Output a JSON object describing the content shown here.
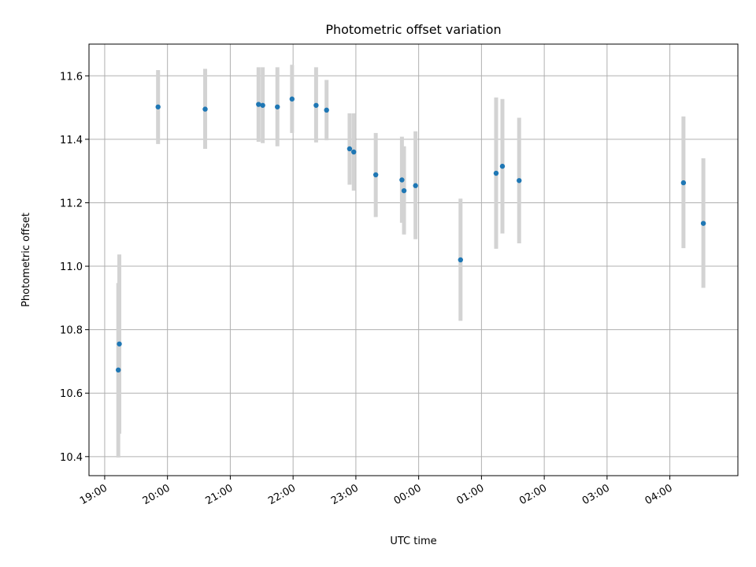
{
  "chart_data": {
    "type": "scatter",
    "title": "Photometric offset variation",
    "xlabel": "UTC time",
    "ylabel": "Photometric offset",
    "grid": true,
    "legend": "none",
    "colors": {
      "point": "#1f77b4",
      "errorbar": "#d3d3d3",
      "grid": "#b0b0b0"
    },
    "x_axis": {
      "type": "time",
      "range": [
        "18:45",
        "05:05"
      ],
      "tick_times": [
        "19:00",
        "20:00",
        "21:00",
        "22:00",
        "23:00",
        "00:00",
        "01:00",
        "02:00",
        "03:00",
        "04:00"
      ],
      "tick_labels": [
        "19:00",
        "20:00",
        "21:00",
        "22:00",
        "23:00",
        "00:00",
        "01:00",
        "02:00",
        "03:00",
        "04:00"
      ]
    },
    "y_axis": {
      "range": [
        10.34,
        11.7
      ],
      "ticks": [
        10.4,
        10.6,
        10.8,
        11.0,
        11.2,
        11.4,
        11.6
      ],
      "tick_labels": [
        "10.4",
        "10.6",
        "10.8",
        "11.0",
        "11.2",
        "11.4",
        "11.6"
      ]
    },
    "points": [
      {
        "time": "19:13",
        "y": 10.673,
        "yerr_low": 10.397,
        "yerr_high": 10.947
      },
      {
        "time": "19:14",
        "y": 10.755,
        "yerr_low": 10.472,
        "yerr_high": 11.037
      },
      {
        "time": "19:51",
        "y": 11.502,
        "yerr_low": 11.385,
        "yerr_high": 11.618
      },
      {
        "time": "20:36",
        "y": 11.495,
        "yerr_low": 11.37,
        "yerr_high": 11.622
      },
      {
        "time": "21:27",
        "y": 11.51,
        "yerr_low": 11.392,
        "yerr_high": 11.627
      },
      {
        "time": "21:31",
        "y": 11.507,
        "yerr_low": 11.388,
        "yerr_high": 11.627
      },
      {
        "time": "21:45",
        "y": 11.502,
        "yerr_low": 11.378,
        "yerr_high": 11.627
      },
      {
        "time": "21:59",
        "y": 11.527,
        "yerr_low": 11.42,
        "yerr_high": 11.635
      },
      {
        "time": "22:22",
        "y": 11.507,
        "yerr_low": 11.39,
        "yerr_high": 11.627
      },
      {
        "time": "22:32",
        "y": 11.492,
        "yerr_low": 11.397,
        "yerr_high": 11.587
      },
      {
        "time": "22:54",
        "y": 11.37,
        "yerr_low": 11.257,
        "yerr_high": 11.482
      },
      {
        "time": "22:58",
        "y": 11.36,
        "yerr_low": 11.238,
        "yerr_high": 11.482
      },
      {
        "time": "23:19",
        "y": 11.288,
        "yerr_low": 11.155,
        "yerr_high": 11.42
      },
      {
        "time": "23:44",
        "y": 11.272,
        "yerr_low": 11.137,
        "yerr_high": 11.408
      },
      {
        "time": "23:46",
        "y": 11.238,
        "yerr_low": 11.1,
        "yerr_high": 11.378
      },
      {
        "time": "23:57",
        "y": 11.254,
        "yerr_low": 11.085,
        "yerr_high": 11.425
      },
      {
        "time": "00:40",
        "y": 11.02,
        "yerr_low": 10.828,
        "yerr_high": 11.213
      },
      {
        "time": "01:14",
        "y": 11.293,
        "yerr_low": 11.055,
        "yerr_high": 11.532
      },
      {
        "time": "01:20",
        "y": 11.315,
        "yerr_low": 11.103,
        "yerr_high": 11.527
      },
      {
        "time": "01:36",
        "y": 11.27,
        "yerr_low": 11.072,
        "yerr_high": 11.468
      },
      {
        "time": "04:13",
        "y": 11.263,
        "yerr_low": 11.057,
        "yerr_high": 11.472
      },
      {
        "time": "04:32",
        "y": 11.135,
        "yerr_low": 10.932,
        "yerr_high": 11.34
      }
    ]
  }
}
